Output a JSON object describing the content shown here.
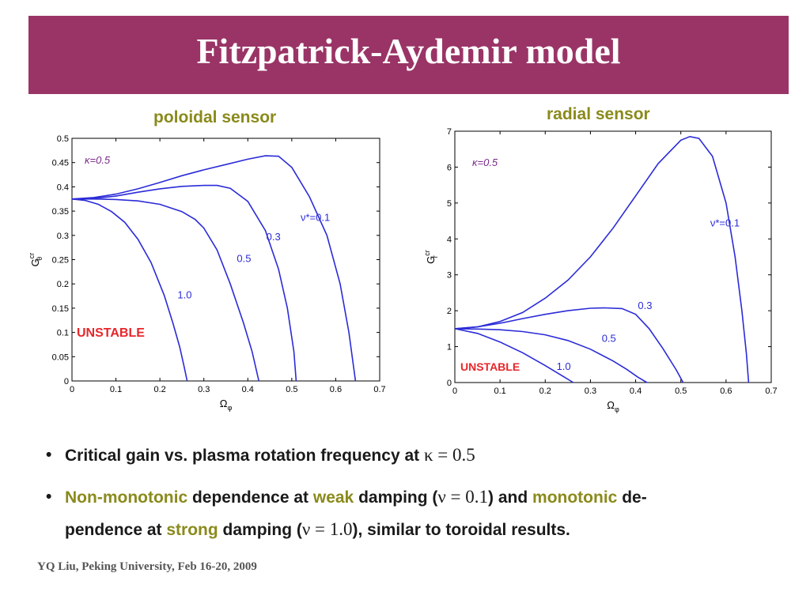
{
  "slide": {
    "title": "Fitzpatrick-Aydemir model",
    "footer": "YQ Liu, Peking University, Feb 16-20, 2009"
  },
  "colors": {
    "title_bar": "#9a3466",
    "accent_text": "#8a8a1c",
    "curve": "#2b2bd8",
    "unstable": "#e8262a",
    "kappa_label": "#7a2a8a"
  },
  "bullets": {
    "b1": {
      "text": "Critical gain vs. plasma rotation frequency at ",
      "math": "κ = 0.5"
    },
    "b2": {
      "hl1": "Non-monotonic",
      "t1": " dependence at ",
      "hl2": "weak",
      "t2": " damping (",
      "m1": "ν = 0.1",
      "t3": ") and ",
      "hl3": "monotonic",
      "t4": " de-",
      "t5": "pendence at ",
      "hl4": "strong",
      "t6": " damping (",
      "m2": "ν = 1.0",
      "t7": "), similar to toroidal results."
    }
  },
  "chart_data": [
    {
      "type": "line",
      "title": "poloidal sensor",
      "xlabel": "Ωφ",
      "ylabel": "Gθcr",
      "xlim": [
        0,
        0.7
      ],
      "ylim": [
        0,
        0.5
      ],
      "xticks": [
        "0",
        "0.1",
        "0.2",
        "0.3",
        "0.4",
        "0.5",
        "0.6",
        "0.7"
      ],
      "yticks": [
        "0",
        "0.05",
        "0.1",
        "0.15",
        "0.2",
        "0.25",
        "0.3",
        "0.35",
        "0.4",
        "0.45",
        "0.5"
      ],
      "annotations": [
        "κ=0.5",
        "UNSTABLE"
      ],
      "grid": false,
      "series": [
        {
          "name": "ν*=0.1",
          "label_at": [
            0.52,
            0.33
          ],
          "x": [
            0,
            0.05,
            0.1,
            0.15,
            0.2,
            0.25,
            0.3,
            0.35,
            0.4,
            0.44,
            0.47,
            0.5,
            0.54,
            0.58,
            0.61,
            0.63,
            0.645
          ],
          "y": [
            0.375,
            0.378,
            0.385,
            0.396,
            0.409,
            0.423,
            0.435,
            0.446,
            0.457,
            0.464,
            0.463,
            0.44,
            0.38,
            0.3,
            0.2,
            0.1,
            0
          ]
        },
        {
          "name": "0.3",
          "label_at": [
            0.442,
            0.29
          ],
          "x": [
            0,
            0.05,
            0.1,
            0.15,
            0.2,
            0.25,
            0.3,
            0.33,
            0.36,
            0.4,
            0.44,
            0.47,
            0.49,
            0.505,
            0.51
          ],
          "y": [
            0.375,
            0.376,
            0.381,
            0.389,
            0.396,
            0.401,
            0.403,
            0.403,
            0.397,
            0.37,
            0.31,
            0.23,
            0.15,
            0.06,
            0
          ]
        },
        {
          "name": "0.5",
          "label_at": [
            0.375,
            0.245
          ],
          "x": [
            0,
            0.05,
            0.1,
            0.15,
            0.2,
            0.25,
            0.28,
            0.3,
            0.33,
            0.36,
            0.39,
            0.41,
            0.42,
            0.425
          ],
          "y": [
            0.375,
            0.375,
            0.374,
            0.371,
            0.364,
            0.349,
            0.333,
            0.315,
            0.27,
            0.2,
            0.12,
            0.06,
            0.02,
            0
          ]
        },
        {
          "name": "1.0",
          "label_at": [
            0.24,
            0.17
          ],
          "x": [
            0,
            0.03,
            0.06,
            0.09,
            0.12,
            0.15,
            0.18,
            0.21,
            0.23,
            0.245,
            0.255,
            0.262
          ],
          "y": [
            0.375,
            0.372,
            0.364,
            0.349,
            0.327,
            0.292,
            0.244,
            0.176,
            0.118,
            0.07,
            0.03,
            0
          ]
        }
      ]
    },
    {
      "type": "line",
      "title": "radial sensor",
      "xlabel": "Ωφ",
      "ylabel": "Grcr",
      "xlim": [
        0,
        0.7
      ],
      "ylim": [
        0,
        7
      ],
      "xticks": [
        "0",
        "0.1",
        "0.2",
        "0.3",
        "0.4",
        "0.5",
        "0.6",
        "0.7"
      ],
      "yticks": [
        "0",
        "1",
        "2",
        "3",
        "4",
        "5",
        "6",
        "7"
      ],
      "annotations": [
        "κ=0.5",
        "UNSTABLE"
      ],
      "grid": false,
      "series": [
        {
          "name": "ν*=0.1",
          "label_at": [
            0.565,
            4.35
          ],
          "x": [
            0,
            0.05,
            0.1,
            0.15,
            0.2,
            0.25,
            0.3,
            0.35,
            0.4,
            0.45,
            0.5,
            0.52,
            0.54,
            0.57,
            0.6,
            0.62,
            0.635,
            0.645,
            0.65
          ],
          "y": [
            1.5,
            1.55,
            1.7,
            1.95,
            2.35,
            2.85,
            3.5,
            4.3,
            5.2,
            6.1,
            6.75,
            6.85,
            6.8,
            6.3,
            5.0,
            3.5,
            2.0,
            0.8,
            0
          ]
        },
        {
          "name": "0.3",
          "label_at": [
            0.405,
            2.05
          ],
          "x": [
            0,
            0.05,
            0.1,
            0.15,
            0.2,
            0.25,
            0.3,
            0.33,
            0.37,
            0.4,
            0.43,
            0.46,
            0.49,
            0.505
          ],
          "y": [
            1.5,
            1.55,
            1.65,
            1.78,
            1.9,
            2.0,
            2.07,
            2.08,
            2.06,
            1.9,
            1.5,
            0.95,
            0.35,
            0
          ]
        },
        {
          "name": "0.5",
          "label_at": [
            0.325,
            1.13
          ],
          "x": [
            0,
            0.05,
            0.1,
            0.15,
            0.2,
            0.25,
            0.3,
            0.35,
            0.38,
            0.405,
            0.425
          ],
          "y": [
            1.5,
            1.49,
            1.47,
            1.42,
            1.33,
            1.17,
            0.93,
            0.6,
            0.37,
            0.15,
            0
          ]
        },
        {
          "name": "1.0",
          "label_at": [
            0.225,
            0.35
          ],
          "x": [
            0,
            0.05,
            0.1,
            0.15,
            0.2,
            0.24,
            0.262
          ],
          "y": [
            1.5,
            1.37,
            1.13,
            0.83,
            0.47,
            0.17,
            0
          ]
        }
      ]
    }
  ]
}
